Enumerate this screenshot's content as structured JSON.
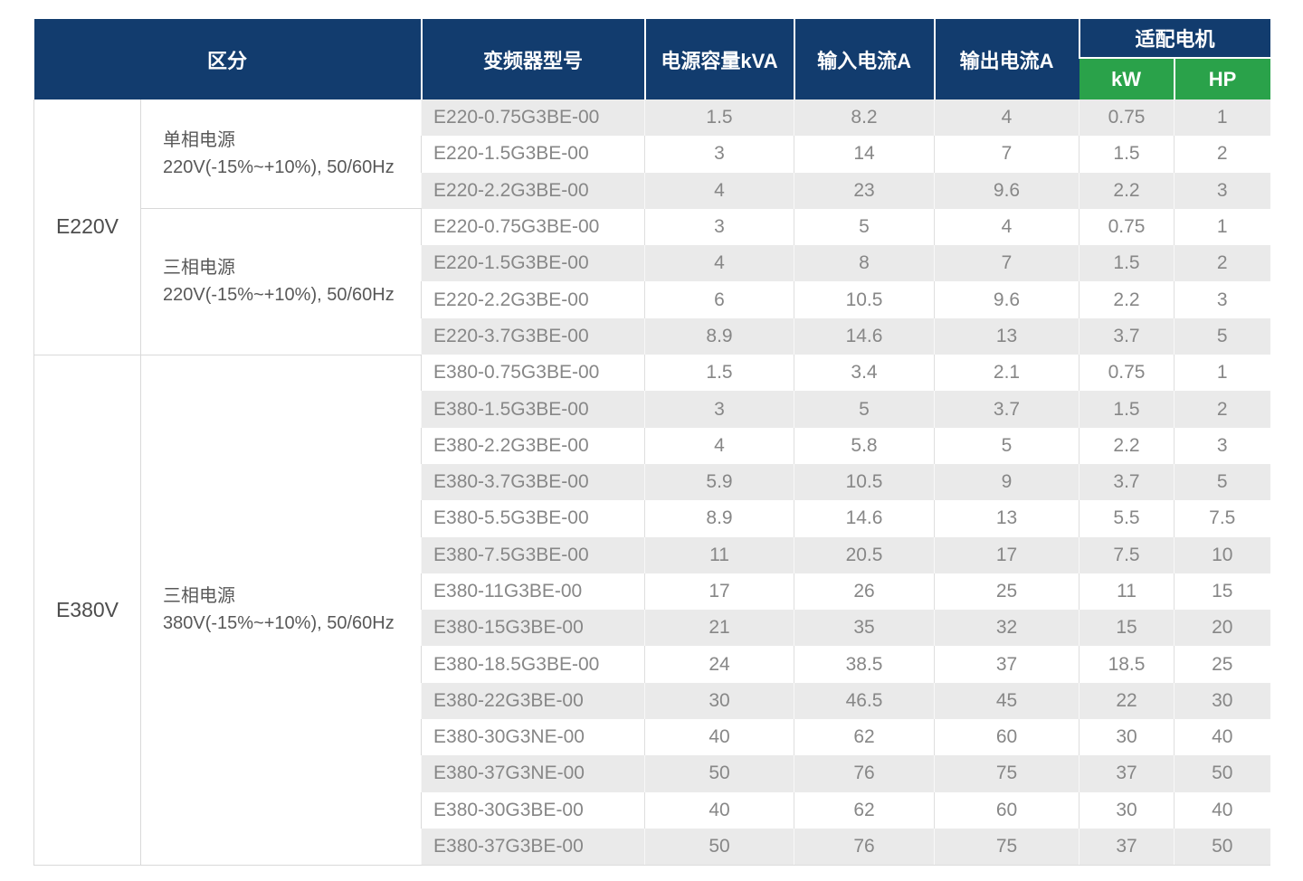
{
  "colors": {
    "header_blue": "#123c6e",
    "header_green": "#2aa24a",
    "stripe_gray": "#eaeaea",
    "category_border": "#d9d9d9"
  },
  "table": {
    "headers": {
      "category": "区分",
      "model": "变频器型号",
      "capacity": "电源容量kVA",
      "input_current": "输入电流A",
      "output_current": "输出电流A",
      "motor": "适配电机",
      "motor_kw": "kW",
      "motor_hp": "HP"
    },
    "groups": [
      {
        "voltage": "E220V",
        "subgroups": [
          {
            "phase_line1": "单相电源",
            "phase_line2": "220V(-15%~+10%), 50/60Hz",
            "rows": [
              {
                "model": "E220-0.75G3BE-00",
                "kva": "1.5",
                "input_a": "8.2",
                "output_a": "4",
                "kw": "0.75",
                "hp": "1"
              },
              {
                "model": "E220-1.5G3BE-00",
                "kva": "3",
                "input_a": "14",
                "output_a": "7",
                "kw": "1.5",
                "hp": "2"
              },
              {
                "model": "E220-2.2G3BE-00",
                "kva": "4",
                "input_a": "23",
                "output_a": "9.6",
                "kw": "2.2",
                "hp": "3"
              }
            ]
          },
          {
            "phase_line1": "三相电源",
            "phase_line2": "220V(-15%~+10%), 50/60Hz",
            "rows": [
              {
                "model": "E220-0.75G3BE-00",
                "kva": "3",
                "input_a": "5",
                "output_a": "4",
                "kw": "0.75",
                "hp": "1"
              },
              {
                "model": "E220-1.5G3BE-00",
                "kva": "4",
                "input_a": "8",
                "output_a": "7",
                "kw": "1.5",
                "hp": "2"
              },
              {
                "model": "E220-2.2G3BE-00",
                "kva": "6",
                "input_a": "10.5",
                "output_a": "9.6",
                "kw": "2.2",
                "hp": "3"
              },
              {
                "model": "E220-3.7G3BE-00",
                "kva": "8.9",
                "input_a": "14.6",
                "output_a": "13",
                "kw": "3.7",
                "hp": "5"
              }
            ]
          }
        ]
      },
      {
        "voltage": "E380V",
        "subgroups": [
          {
            "phase_line1": "三相电源",
            "phase_line2": "380V(-15%~+10%), 50/60Hz",
            "rows": [
              {
                "model": "E380-0.75G3BE-00",
                "kva": "1.5",
                "input_a": "3.4",
                "output_a": "2.1",
                "kw": "0.75",
                "hp": "1"
              },
              {
                "model": "E380-1.5G3BE-00",
                "kva": "3",
                "input_a": "5",
                "output_a": "3.7",
                "kw": "1.5",
                "hp": "2"
              },
              {
                "model": "E380-2.2G3BE-00",
                "kva": "4",
                "input_a": "5.8",
                "output_a": "5",
                "kw": "2.2",
                "hp": "3"
              },
              {
                "model": "E380-3.7G3BE-00",
                "kva": "5.9",
                "input_a": "10.5",
                "output_a": "9",
                "kw": "3.7",
                "hp": "5"
              },
              {
                "model": "E380-5.5G3BE-00",
                "kva": "8.9",
                "input_a": "14.6",
                "output_a": "13",
                "kw": "5.5",
                "hp": "7.5"
              },
              {
                "model": "E380-7.5G3BE-00",
                "kva": "11",
                "input_a": "20.5",
                "output_a": "17",
                "kw": "7.5",
                "hp": "10"
              },
              {
                "model": "E380-11G3BE-00",
                "kva": "17",
                "input_a": "26",
                "output_a": "25",
                "kw": "11",
                "hp": "15"
              },
              {
                "model": "E380-15G3BE-00",
                "kva": "21",
                "input_a": "35",
                "output_a": "32",
                "kw": "15",
                "hp": "20"
              },
              {
                "model": "E380-18.5G3BE-00",
                "kva": "24",
                "input_a": "38.5",
                "output_a": "37",
                "kw": "18.5",
                "hp": "25"
              },
              {
                "model": "E380-22G3BE-00",
                "kva": "30",
                "input_a": "46.5",
                "output_a": "45",
                "kw": "22",
                "hp": "30"
              },
              {
                "model": "E380-30G3NE-00",
                "kva": "40",
                "input_a": "62",
                "output_a": "60",
                "kw": "30",
                "hp": "40"
              },
              {
                "model": "E380-37G3NE-00",
                "kva": "50",
                "input_a": "76",
                "output_a": "75",
                "kw": "37",
                "hp": "50"
              },
              {
                "model": "E380-30G3BE-00",
                "kva": "40",
                "input_a": "62",
                "output_a": "60",
                "kw": "30",
                "hp": "40"
              },
              {
                "model": "E380-37G3BE-00",
                "kva": "50",
                "input_a": "76",
                "output_a": "75",
                "kw": "37",
                "hp": "50"
              }
            ]
          }
        ]
      }
    ]
  }
}
